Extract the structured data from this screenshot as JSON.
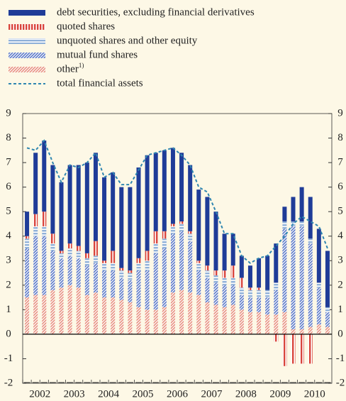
{
  "chart_data": {
    "type": "bar",
    "stacked": true,
    "categories": [
      "2002",
      null,
      null,
      null,
      "2003",
      null,
      null,
      null,
      "2004",
      null,
      null,
      null,
      "2005",
      null,
      null,
      null,
      "2006",
      null,
      null,
      null,
      "2007",
      null,
      null,
      null,
      "2008",
      null,
      null,
      null,
      "2009",
      null,
      null,
      null,
      "2010",
      null,
      null,
      null
    ],
    "ylim": [
      -2,
      9
    ],
    "yticks": [
      -2,
      -1,
      0,
      1,
      2,
      3,
      4,
      5,
      6,
      7,
      8,
      9
    ],
    "series": [
      {
        "name": "debt securities, excluding financial derivatives",
        "color": "#1f3c98",
        "pattern": "solid",
        "values": [
          1.0,
          2.5,
          2.9,
          2.8,
          2.8,
          3.2,
          3.3,
          3.7,
          3.6,
          3.4,
          3.2,
          3.3,
          3.4,
          3.7,
          3.9,
          3.2,
          3.3,
          3.1,
          2.8,
          2.7,
          2.9,
          2.8,
          2.4,
          1.5,
          1.3,
          0.9,
          0.9,
          1.2,
          1.4,
          1.6,
          0.6,
          1.0,
          1.4,
          1.7,
          2.2,
          2.3
        ]
      },
      {
        "name": "quoted shares",
        "color": "#d9453c",
        "pattern": "vertical",
        "values": [
          0.1,
          0.5,
          0.6,
          0.4,
          0.1,
          0.2,
          0.2,
          0.2,
          0.6,
          0.1,
          0.5,
          0.1,
          0.1,
          0.2,
          0.4,
          0.5,
          0.3,
          0.1,
          0.1,
          0.1,
          0.1,
          0.2,
          0.2,
          0.3,
          0.5,
          0.4,
          0.1,
          0.1,
          0.0,
          -0.3,
          -1.3,
          -1.2,
          -1.2,
          -1.2,
          0.0,
          0.0
        ]
      },
      {
        "name": "unquoted shares and other equity",
        "color": "#8fb0d8",
        "pattern": "horizontal",
        "values": [
          0.4,
          0.4,
          0.4,
          0.3,
          0.2,
          0.3,
          0.3,
          0.3,
          0.3,
          0.3,
          0.3,
          0.3,
          0.3,
          0.3,
          0.4,
          0.4,
          0.4,
          0.3,
          0.3,
          0.3,
          0.3,
          0.3,
          0.3,
          0.3,
          0.3,
          0.3,
          0.3,
          0.3,
          0.3,
          0.3,
          0.3,
          0.2,
          0.2,
          0.2,
          0.2,
          0.2
        ]
      },
      {
        "name": "mutual fund shares",
        "color": "#5a78c8",
        "pattern": "diagonal",
        "values": [
          2.0,
          2.4,
          2.4,
          1.6,
          1.2,
          1.2,
          1.2,
          1.2,
          1.2,
          1.1,
          1.1,
          0.9,
          0.9,
          1.5,
          1.6,
          2.3,
          2.4,
          2.4,
          2.4,
          2.1,
          1.0,
          1.0,
          0.9,
          0.9,
          0.8,
          0.6,
          0.6,
          0.6,
          0.7,
          1.0,
          3.4,
          4.2,
          4.2,
          3.4,
          1.5,
          0.6
        ]
      },
      {
        "name": "other",
        "name_note": "1)",
        "color": "#e8907f",
        "pattern": "diagonal",
        "values": [
          1.5,
          1.6,
          1.6,
          1.8,
          1.9,
          2.0,
          1.9,
          1.6,
          1.7,
          1.5,
          1.5,
          1.4,
          1.3,
          1.1,
          1.0,
          1.0,
          1.1,
          1.7,
          1.8,
          1.7,
          1.6,
          1.3,
          1.2,
          1.1,
          1.2,
          1.0,
          0.9,
          0.9,
          0.8,
          0.8,
          0.9,
          0.2,
          0.2,
          0.3,
          0.4,
          0.3
        ]
      },
      {
        "name": "total financial assets",
        "color": "#2f86b0",
        "type": "line",
        "dash": true,
        "values": [
          7.6,
          7.5,
          7.9,
          7.0,
          6.2,
          6.9,
          6.8,
          7.0,
          7.4,
          6.4,
          6.6,
          6.1,
          6.1,
          6.7,
          7.3,
          7.4,
          7.5,
          7.6,
          7.3,
          6.9,
          6.0,
          5.8,
          5.0,
          4.1,
          4.1,
          3.2,
          2.9,
          3.1,
          3.2,
          3.6,
          4.0,
          4.5,
          4.8,
          4.6,
          4.4,
          3.5
        ]
      }
    ]
  }
}
